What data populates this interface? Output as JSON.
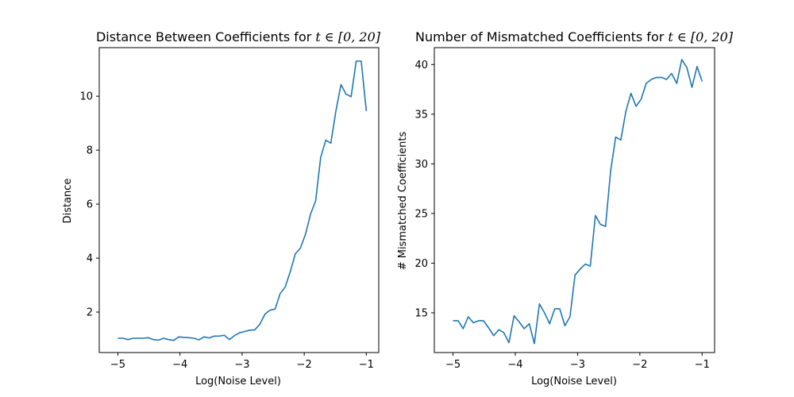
{
  "chart_data": [
    {
      "type": "line",
      "title": "Distance Between Coefficients for t ∈ [0, 20]",
      "title_parts": {
        "text": "Distance Between Coefficients for ",
        "math": "t ∈ [0, 20]"
      },
      "xlabel": "Log(Noise Level)",
      "ylabel": "Distance",
      "xlim": [
        -5.3,
        -0.8
      ],
      "ylim": [
        0.5,
        11.8
      ],
      "xticks": [
        -5,
        -4,
        -3,
        -2,
        -1
      ],
      "xtick_labels": [
        "−5",
        "−4",
        "−3",
        "−2",
        "−1"
      ],
      "yticks": [
        2,
        4,
        6,
        8,
        10
      ],
      "ytick_labels": [
        "2",
        "4",
        "6",
        "8",
        "10"
      ],
      "grid": false,
      "series": [
        {
          "color": "#1f77b4",
          "x": [
            -5.0,
            -4.918,
            -4.837,
            -4.755,
            -4.673,
            -4.592,
            -4.51,
            -4.429,
            -4.347,
            -4.265,
            -4.184,
            -4.102,
            -4.02,
            -3.939,
            -3.857,
            -3.776,
            -3.694,
            -3.612,
            -3.531,
            -3.449,
            -3.367,
            -3.286,
            -3.204,
            -3.122,
            -3.041,
            -2.959,
            -2.878,
            -2.796,
            -2.714,
            -2.633,
            -2.551,
            -2.469,
            -2.388,
            -2.306,
            -2.224,
            -2.143,
            -2.061,
            -1.98,
            -1.898,
            -1.816,
            -1.735,
            -1.653,
            -1.571,
            -1.49,
            -1.408,
            -1.327,
            -1.245,
            -1.163,
            -1.082,
            -1.0
          ],
          "y": [
            1.03,
            1.03,
            0.98,
            1.03,
            1.03,
            1.03,
            1.05,
            0.98,
            0.96,
            1.03,
            0.98,
            0.95,
            1.08,
            1.06,
            1.05,
            1.03,
            0.97,
            1.08,
            1.04,
            1.11,
            1.11,
            1.14,
            0.98,
            1.13,
            1.23,
            1.28,
            1.33,
            1.34,
            1.55,
            1.92,
            2.07,
            2.11,
            2.68,
            2.93,
            3.5,
            4.16,
            4.37,
            4.88,
            5.63,
            6.12,
            7.73,
            8.37,
            8.26,
            9.45,
            10.43,
            10.08,
            9.98,
            11.3,
            11.3,
            9.45
          ]
        }
      ]
    },
    {
      "type": "line",
      "title": "Number of Mismatched Coefficients for t ∈ [0, 20]",
      "title_parts": {
        "text": "Number of Mismatched Coefficients for ",
        "math": "t ∈ [0, 20]"
      },
      "xlabel": "Log(Noise Level)",
      "ylabel": "# Mismatched Coefficients",
      "xlim": [
        -5.3,
        -0.8
      ],
      "ylim": [
        11.0,
        41.7
      ],
      "xticks": [
        -5,
        -4,
        -3,
        -2,
        -1
      ],
      "xtick_labels": [
        "−5",
        "−4",
        "−3",
        "−2",
        "−1"
      ],
      "yticks": [
        15,
        20,
        25,
        30,
        35,
        40
      ],
      "ytick_labels": [
        "15",
        "20",
        "25",
        "30",
        "35",
        "40"
      ],
      "grid": false,
      "series": [
        {
          "color": "#1f77b4",
          "x": [
            -5.0,
            -4.918,
            -4.837,
            -4.755,
            -4.673,
            -4.592,
            -4.51,
            -4.429,
            -4.347,
            -4.265,
            -4.184,
            -4.102,
            -4.02,
            -3.939,
            -3.857,
            -3.776,
            -3.694,
            -3.612,
            -3.531,
            -3.449,
            -3.367,
            -3.286,
            -3.204,
            -3.122,
            -3.041,
            -2.959,
            -2.878,
            -2.796,
            -2.714,
            -2.633,
            -2.551,
            -2.469,
            -2.388,
            -2.306,
            -2.224,
            -2.143,
            -2.061,
            -1.98,
            -1.898,
            -1.816,
            -1.735,
            -1.653,
            -1.571,
            -1.49,
            -1.408,
            -1.327,
            -1.245,
            -1.163,
            -1.082,
            -1.0
          ],
          "y": [
            14.2,
            14.2,
            13.4,
            14.6,
            14.0,
            14.2,
            14.2,
            13.5,
            12.7,
            13.3,
            13.0,
            12.0,
            14.7,
            14.1,
            13.4,
            13.9,
            11.9,
            15.9,
            15.0,
            13.9,
            15.4,
            15.4,
            13.7,
            14.6,
            18.8,
            19.4,
            19.9,
            19.7,
            24.8,
            23.9,
            23.7,
            29.3,
            32.7,
            32.4,
            35.3,
            37.1,
            35.8,
            36.5,
            38.1,
            38.5,
            38.7,
            38.7,
            38.5,
            39.1,
            38.1,
            40.5,
            39.7,
            37.7,
            39.8,
            38.3
          ]
        }
      ]
    }
  ]
}
